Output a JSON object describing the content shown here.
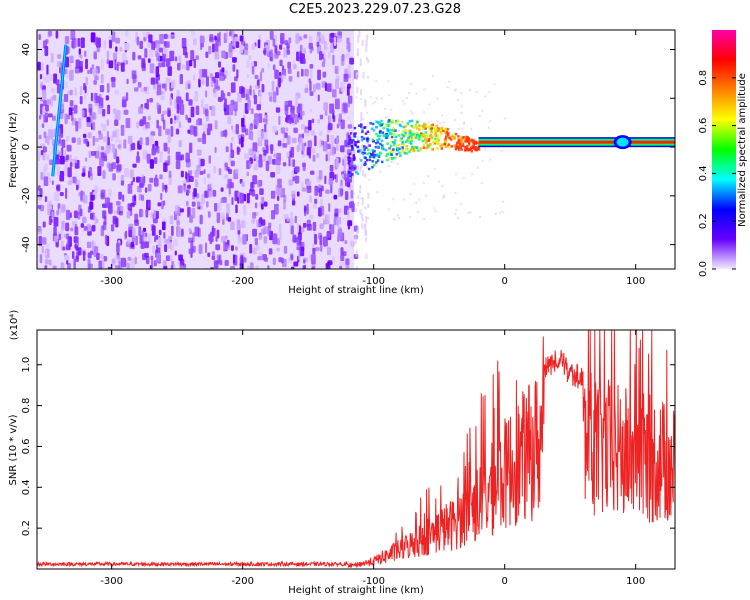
{
  "title": "C2E5.2023.229.07.23.G28",
  "chart_data": [
    {
      "type": "heatmap",
      "xlabel": "Height of straight line (km)",
      "ylabel": "Frequency (Hz)",
      "xlim": [
        -357,
        130
      ],
      "ylim": [
        -50,
        48
      ],
      "x_ticks": [
        -300,
        -200,
        -100,
        0,
        100
      ],
      "y_ticks": [
        -40,
        -20,
        0,
        20,
        40
      ],
      "noise_region_x": [
        -357,
        -115
      ],
      "streak": {
        "x": [
          -345,
          -335
        ],
        "y": [
          -12,
          42
        ]
      },
      "scatter_region_x": [
        -120,
        -20
      ],
      "line": {
        "x": [
          -20,
          130
        ],
        "y": 2
      },
      "blob_x": 90,
      "grid": false
    },
    {
      "type": "colorbar",
      "label": "Normalized spectral amplitude",
      "range": [
        0,
        1
      ],
      "ticks": [
        0.0,
        0.2,
        0.4,
        0.6,
        0.8
      ],
      "colors": [
        "#f2eaff",
        "#6600ff",
        "#0000ff",
        "#00ffff",
        "#00ff00",
        "#ffff00",
        "#ff8000",
        "#ff0000",
        "#ff00aa"
      ]
    },
    {
      "type": "line",
      "xlabel": "Height of straight line (km)",
      "ylabel": "SNR (10 * v/v)",
      "y_multiplier": "(x10⁴)",
      "xlim": [
        -357,
        130
      ],
      "ylim": [
        0,
        1.17
      ],
      "x_ticks": [
        -300,
        -200,
        -100,
        0,
        100
      ],
      "y_ticks": [
        0.2,
        0.4,
        0.6,
        0.8,
        1.0
      ],
      "series": [
        {
          "color": "#ee2222",
          "envelope_x": [
            -357,
            -120,
            -100,
            -80,
            -60,
            -40,
            -30,
            -20,
            -10,
            0,
            10,
            20,
            30,
            40,
            50,
            60,
            70,
            80,
            90,
            100,
            110,
            120,
            130
          ],
          "envelope_y": [
            0.02,
            0.02,
            0.06,
            0.15,
            0.25,
            0.35,
            0.42,
            0.52,
            0.62,
            0.74,
            0.84,
            0.92,
            1.03,
            1.1,
            1.02,
            0.99,
            0.96,
            0.93,
            0.9,
            0.88,
            0.86,
            0.84,
            0.8
          ]
        }
      ]
    }
  ]
}
